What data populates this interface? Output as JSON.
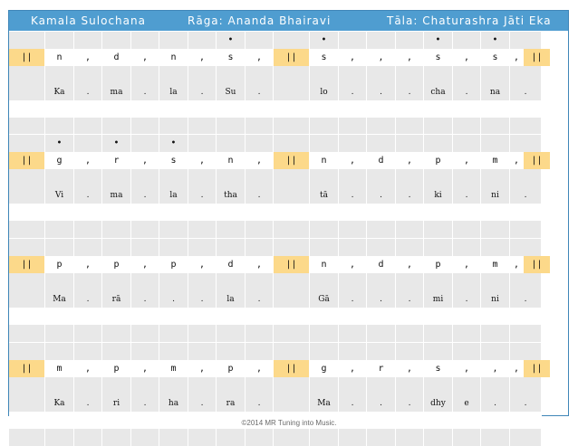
{
  "header": {
    "composer": "Kamala Sulochana",
    "raga": "Rāga:  Ananda Bhairavi",
    "tala": "Tāla:  Chaturashra Jāti Eka"
  },
  "lines": [
    {
      "dots": [
        "",
        "",
        "",
        "",
        "",
        "",
        "",
        "•",
        "",
        "",
        "•",
        "",
        "",
        "",
        "•",
        "",
        "•",
        ""
      ],
      "swaras": [
        "||",
        "n",
        ",",
        "d",
        ",",
        "n",
        ",",
        "s",
        ",",
        "||",
        "s",
        ",",
        ",",
        ",",
        "s",
        ",",
        "s",
        ",",
        "||"
      ],
      "lyrics": [
        "",
        "Ka",
        ".",
        "ma",
        ".",
        "la",
        ".",
        "Su",
        ".",
        "",
        "lo",
        ".",
        ".",
        ".",
        "cha",
        ".",
        "na",
        "."
      ]
    },
    {
      "dots": [
        "",
        "•",
        "",
        "•",
        "",
        "•",
        "",
        "",
        "",
        "",
        "",
        "",
        "",
        "",
        "",
        "",
        "",
        ""
      ],
      "swaras": [
        "||",
        "g",
        ",",
        "r",
        ",",
        "s",
        ",",
        "n",
        ",",
        "||",
        "n",
        ",",
        "d",
        ",",
        "p",
        ",",
        "m",
        ",",
        "||"
      ],
      "lyrics": [
        "",
        "Vi",
        ".",
        "ma",
        ".",
        "la",
        ".",
        "tha",
        ".",
        "",
        "tā",
        ".",
        ".",
        ".",
        "ki",
        ".",
        "ni",
        "."
      ]
    },
    {
      "dots": [
        "",
        "",
        "",
        "",
        "",
        "",
        "",
        "",
        "",
        "",
        "",
        "",
        "",
        "",
        "",
        "",
        "",
        ""
      ],
      "swaras": [
        "||",
        "p",
        ",",
        "p",
        ",",
        "p",
        ",",
        "d",
        ",",
        "||",
        "n",
        ",",
        "d",
        ",",
        "p",
        ",",
        "m",
        ",",
        "||"
      ],
      "lyrics": [
        "",
        "Ma",
        ".",
        "rā",
        ".",
        ".",
        ".",
        "la",
        ".",
        "",
        "Gā",
        ".",
        ".",
        ".",
        "mi",
        ".",
        "ni",
        "."
      ]
    },
    {
      "dots": [
        "",
        "",
        "",
        "",
        "",
        "",
        "",
        "",
        "",
        "",
        "",
        "",
        "",
        "",
        "",
        "",
        "",
        ""
      ],
      "swaras": [
        "||",
        "m",
        ",",
        "p",
        ",",
        "m",
        ",",
        "p",
        ",",
        "||",
        "g",
        ",",
        "r",
        ",",
        "s",
        ",",
        ",",
        ",",
        "||"
      ],
      "lyrics": [
        "",
        "Ka",
        ".",
        "ri",
        ".",
        "ha",
        ".",
        "ra",
        ".",
        "",
        "Ma",
        ".",
        ".",
        ".",
        "dhy",
        "e",
        ".",
        "."
      ]
    }
  ],
  "footer": "©2014 MR Tuning into Music."
}
